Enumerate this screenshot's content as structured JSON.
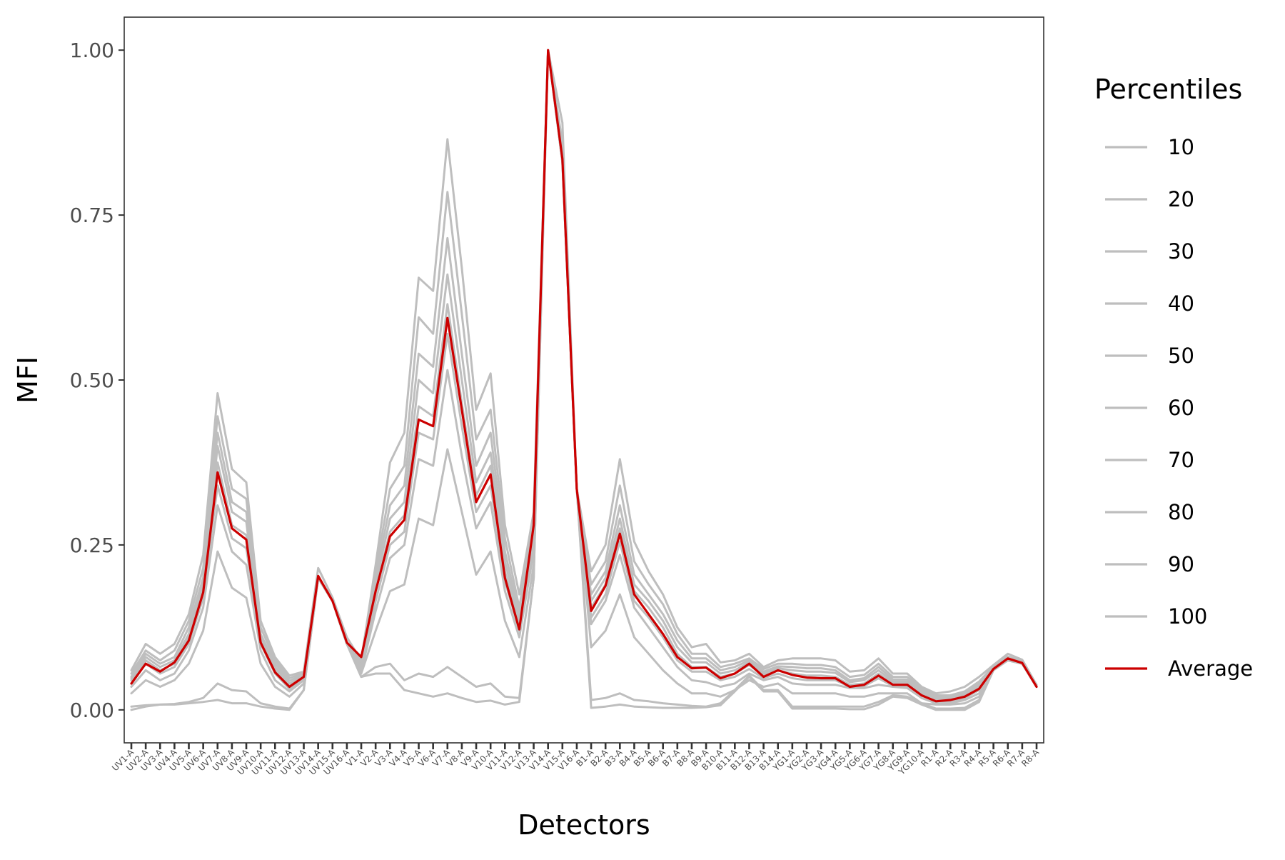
{
  "chart_data": {
    "type": "line",
    "xlabel": "Detectors",
    "ylabel": "MFI",
    "ylim": [
      -0.05,
      1.05
    ],
    "y_ticks": [
      0,
      0.25,
      0.5,
      0.75,
      1
    ],
    "y_tick_labels": [
      "0.00",
      "0.25",
      "0.50",
      "0.75",
      "1.00"
    ],
    "grid": false,
    "legend_position": "right",
    "legend_title": "Percentiles",
    "categories": [
      "UV1-A",
      "UV2-A",
      "UV3-A",
      "UV4-A",
      "UV5-A",
      "UV6-A",
      "UV7-A",
      "UV8-A",
      "UV9-A",
      "UV10-A",
      "UV11-A",
      "UV12-A",
      "UV13-A",
      "UV14-A",
      "UV15-A",
      "UV16-A",
      "V1-A",
      "V2-A",
      "V3-A",
      "V4-A",
      "V5-A",
      "V6-A",
      "V7-A",
      "V8-A",
      "V9-A",
      "V10-A",
      "V11-A",
      "V12-A",
      "V13-A",
      "V14-A",
      "V15-A",
      "V16-A",
      "B1-A",
      "B2-A",
      "B3-A",
      "B4-A",
      "B5-A",
      "B6-A",
      "B7-A",
      "B8-A",
      "B9-A",
      "B10-A",
      "B11-A",
      "B12-A",
      "B13-A",
      "B14-A",
      "YG1-A",
      "YG2-A",
      "YG3-A",
      "YG4-A",
      "YG5-A",
      "YG6-A",
      "YG7-A",
      "YG8-A",
      "YG9-A",
      "YG10-A",
      "R1-A",
      "R2-A",
      "R3-A",
      "R4-A",
      "R5-A",
      "R6-A",
      "R7-A",
      "R8-A"
    ],
    "series": [
      {
        "name": "10",
        "color": "#bebebe",
        "values": [
          0.0,
          0.005,
          0.008,
          0.008,
          0.01,
          0.012,
          0.015,
          0.01,
          0.01,
          0.005,
          0.002,
          0.0,
          0.03,
          0.2,
          0.165,
          0.1,
          0.05,
          0.055,
          0.055,
          0.03,
          0.025,
          0.02,
          0.025,
          0.018,
          0.012,
          0.014,
          0.008,
          0.012,
          0.2,
          1.0,
          0.83,
          0.335,
          0.003,
          0.005,
          0.008,
          0.005,
          0.004,
          0.003,
          0.003,
          0.003,
          0.004,
          0.007,
          0.028,
          0.05,
          0.028,
          0.028,
          0.002,
          0.002,
          0.002,
          0.002,
          0.001,
          0.001,
          0.008,
          0.02,
          0.018,
          0.008,
          0.0,
          0.0,
          0.0,
          0.012,
          0.06,
          0.075,
          0.07,
          0.035
        ]
      },
      {
        "name": "20",
        "color": "#bebebe",
        "values": [
          0.005,
          0.007,
          0.008,
          0.009,
          0.012,
          0.018,
          0.04,
          0.03,
          0.028,
          0.01,
          0.005,
          0.002,
          0.03,
          0.2,
          0.165,
          0.1,
          0.05,
          0.065,
          0.07,
          0.045,
          0.055,
          0.05,
          0.065,
          0.05,
          0.035,
          0.04,
          0.02,
          0.018,
          0.2,
          1.0,
          0.83,
          0.335,
          0.015,
          0.018,
          0.025,
          0.015,
          0.013,
          0.01,
          0.008,
          0.006,
          0.005,
          0.01,
          0.03,
          0.052,
          0.03,
          0.03,
          0.005,
          0.005,
          0.005,
          0.005,
          0.005,
          0.005,
          0.012,
          0.022,
          0.02,
          0.01,
          0.002,
          0.002,
          0.003,
          0.015,
          0.062,
          0.075,
          0.07,
          0.035
        ]
      },
      {
        "name": "30",
        "color": "#bebebe",
        "values": [
          0.025,
          0.045,
          0.035,
          0.045,
          0.07,
          0.12,
          0.24,
          0.185,
          0.17,
          0.07,
          0.035,
          0.02,
          0.04,
          0.2,
          0.165,
          0.1,
          0.055,
          0.12,
          0.18,
          0.19,
          0.29,
          0.28,
          0.395,
          0.3,
          0.205,
          0.24,
          0.135,
          0.08,
          0.22,
          1.0,
          0.83,
          0.335,
          0.095,
          0.12,
          0.175,
          0.11,
          0.085,
          0.06,
          0.04,
          0.025,
          0.025,
          0.02,
          0.03,
          0.045,
          0.035,
          0.04,
          0.025,
          0.025,
          0.025,
          0.025,
          0.02,
          0.02,
          0.025,
          0.025,
          0.025,
          0.01,
          0.008,
          0.008,
          0.01,
          0.02,
          0.062,
          0.075,
          0.07,
          0.035
        ]
      },
      {
        "name": "40",
        "color": "#bebebe",
        "values": [
          0.035,
          0.06,
          0.045,
          0.055,
          0.09,
          0.155,
          0.31,
          0.24,
          0.22,
          0.09,
          0.045,
          0.028,
          0.045,
          0.2,
          0.165,
          0.1,
          0.058,
          0.15,
          0.23,
          0.25,
          0.38,
          0.37,
          0.515,
          0.385,
          0.275,
          0.315,
          0.18,
          0.11,
          0.24,
          1.0,
          0.835,
          0.335,
          0.13,
          0.165,
          0.235,
          0.155,
          0.125,
          0.095,
          0.065,
          0.045,
          0.042,
          0.035,
          0.04,
          0.055,
          0.045,
          0.05,
          0.04,
          0.038,
          0.038,
          0.038,
          0.033,
          0.033,
          0.038,
          0.035,
          0.033,
          0.018,
          0.01,
          0.01,
          0.015,
          0.025,
          0.062,
          0.076,
          0.07,
          0.035
        ]
      },
      {
        "name": "50",
        "color": "#bebebe",
        "values": [
          0.04,
          0.07,
          0.055,
          0.065,
          0.1,
          0.17,
          0.34,
          0.26,
          0.245,
          0.1,
          0.055,
          0.032,
          0.048,
          0.2,
          0.165,
          0.1,
          0.06,
          0.165,
          0.25,
          0.27,
          0.42,
          0.41,
          0.57,
          0.43,
          0.3,
          0.34,
          0.195,
          0.12,
          0.25,
          1.0,
          0.835,
          0.335,
          0.14,
          0.175,
          0.255,
          0.165,
          0.14,
          0.11,
          0.075,
          0.058,
          0.058,
          0.045,
          0.05,
          0.062,
          0.048,
          0.055,
          0.048,
          0.045,
          0.045,
          0.045,
          0.035,
          0.036,
          0.048,
          0.036,
          0.036,
          0.022,
          0.013,
          0.013,
          0.018,
          0.03,
          0.062,
          0.077,
          0.07,
          0.035
        ]
      },
      {
        "name": "60",
        "color": "#bebebe",
        "values": [
          0.045,
          0.075,
          0.06,
          0.07,
          0.11,
          0.18,
          0.375,
          0.28,
          0.265,
          0.105,
          0.06,
          0.036,
          0.05,
          0.2,
          0.165,
          0.1,
          0.065,
          0.18,
          0.27,
          0.295,
          0.46,
          0.445,
          0.615,
          0.465,
          0.325,
          0.37,
          0.21,
          0.125,
          0.26,
          1.0,
          0.84,
          0.335,
          0.155,
          0.19,
          0.275,
          0.18,
          0.155,
          0.125,
          0.085,
          0.065,
          0.065,
          0.05,
          0.055,
          0.068,
          0.052,
          0.06,
          0.055,
          0.052,
          0.052,
          0.05,
          0.038,
          0.04,
          0.055,
          0.04,
          0.04,
          0.025,
          0.015,
          0.015,
          0.02,
          0.034,
          0.063,
          0.078,
          0.071,
          0.035
        ]
      },
      {
        "name": "70",
        "color": "#bebebe",
        "values": [
          0.048,
          0.08,
          0.065,
          0.075,
          0.115,
          0.19,
          0.4,
          0.3,
          0.285,
          0.11,
          0.065,
          0.04,
          0.052,
          0.2,
          0.165,
          0.1,
          0.068,
          0.19,
          0.29,
          0.315,
          0.5,
          0.48,
          0.66,
          0.5,
          0.345,
          0.39,
          0.225,
          0.135,
          0.27,
          1.0,
          0.845,
          0.335,
          0.165,
          0.2,
          0.29,
          0.19,
          0.165,
          0.135,
          0.095,
          0.072,
          0.072,
          0.055,
          0.06,
          0.072,
          0.055,
          0.063,
          0.06,
          0.058,
          0.058,
          0.056,
          0.042,
          0.045,
          0.06,
          0.043,
          0.043,
          0.028,
          0.018,
          0.018,
          0.023,
          0.037,
          0.064,
          0.079,
          0.072,
          0.035
        ]
      },
      {
        "name": "80",
        "color": "#bebebe",
        "values": [
          0.05,
          0.085,
          0.07,
          0.08,
          0.125,
          0.2,
          0.42,
          0.315,
          0.3,
          0.115,
          0.07,
          0.044,
          0.054,
          0.2,
          0.165,
          0.1,
          0.07,
          0.2,
          0.31,
          0.34,
          0.54,
          0.52,
          0.715,
          0.54,
          0.37,
          0.42,
          0.24,
          0.145,
          0.28,
          1.0,
          0.85,
          0.335,
          0.175,
          0.21,
          0.31,
          0.205,
          0.175,
          0.145,
          0.105,
          0.078,
          0.078,
          0.06,
          0.065,
          0.075,
          0.058,
          0.066,
          0.065,
          0.063,
          0.063,
          0.06,
          0.045,
          0.048,
          0.065,
          0.046,
          0.046,
          0.03,
          0.02,
          0.02,
          0.025,
          0.04,
          0.065,
          0.08,
          0.073,
          0.035
        ]
      },
      {
        "name": "90",
        "color": "#bebebe",
        "values": [
          0.055,
          0.09,
          0.075,
          0.09,
          0.135,
          0.215,
          0.445,
          0.335,
          0.32,
          0.125,
          0.075,
          0.048,
          0.056,
          0.2,
          0.165,
          0.1,
          0.072,
          0.21,
          0.335,
          0.37,
          0.595,
          0.57,
          0.785,
          0.6,
          0.41,
          0.455,
          0.26,
          0.155,
          0.29,
          1.0,
          0.86,
          0.335,
          0.19,
          0.225,
          0.34,
          0.225,
          0.19,
          0.16,
          0.115,
          0.085,
          0.085,
          0.065,
          0.07,
          0.078,
          0.062,
          0.07,
          0.07,
          0.068,
          0.068,
          0.065,
          0.05,
          0.053,
          0.07,
          0.05,
          0.05,
          0.033,
          0.022,
          0.022,
          0.028,
          0.043,
          0.066,
          0.081,
          0.074,
          0.036
        ]
      },
      {
        "name": "100",
        "color": "#bebebe",
        "values": [
          0.06,
          0.1,
          0.085,
          0.1,
          0.145,
          0.235,
          0.48,
          0.365,
          0.345,
          0.135,
          0.08,
          0.052,
          0.058,
          0.215,
          0.17,
          0.11,
          0.075,
          0.22,
          0.375,
          0.42,
          0.655,
          0.635,
          0.865,
          0.67,
          0.455,
          0.51,
          0.28,
          0.175,
          0.3,
          1.0,
          0.89,
          0.335,
          0.21,
          0.25,
          0.38,
          0.255,
          0.21,
          0.175,
          0.125,
          0.095,
          0.1,
          0.072,
          0.075,
          0.085,
          0.065,
          0.075,
          0.078,
          0.078,
          0.078,
          0.075,
          0.058,
          0.06,
          0.078,
          0.055,
          0.055,
          0.035,
          0.025,
          0.028,
          0.035,
          0.05,
          0.068,
          0.085,
          0.076,
          0.038
        ]
      },
      {
        "name": "Average",
        "color": "#cc0000",
        "values": [
          0.04,
          0.07,
          0.058,
          0.072,
          0.105,
          0.178,
          0.36,
          0.275,
          0.258,
          0.102,
          0.057,
          0.035,
          0.05,
          0.203,
          0.165,
          0.102,
          0.08,
          0.18,
          0.263,
          0.288,
          0.44,
          0.43,
          0.594,
          0.455,
          0.315,
          0.357,
          0.2,
          0.122,
          0.28,
          1.0,
          0.835,
          0.335,
          0.15,
          0.188,
          0.267,
          0.175,
          0.145,
          0.115,
          0.08,
          0.063,
          0.064,
          0.048,
          0.055,
          0.07,
          0.05,
          0.06,
          0.053,
          0.049,
          0.048,
          0.048,
          0.035,
          0.038,
          0.052,
          0.038,
          0.038,
          0.022,
          0.013,
          0.015,
          0.02,
          0.032,
          0.062,
          0.078,
          0.071,
          0.035
        ]
      }
    ]
  }
}
